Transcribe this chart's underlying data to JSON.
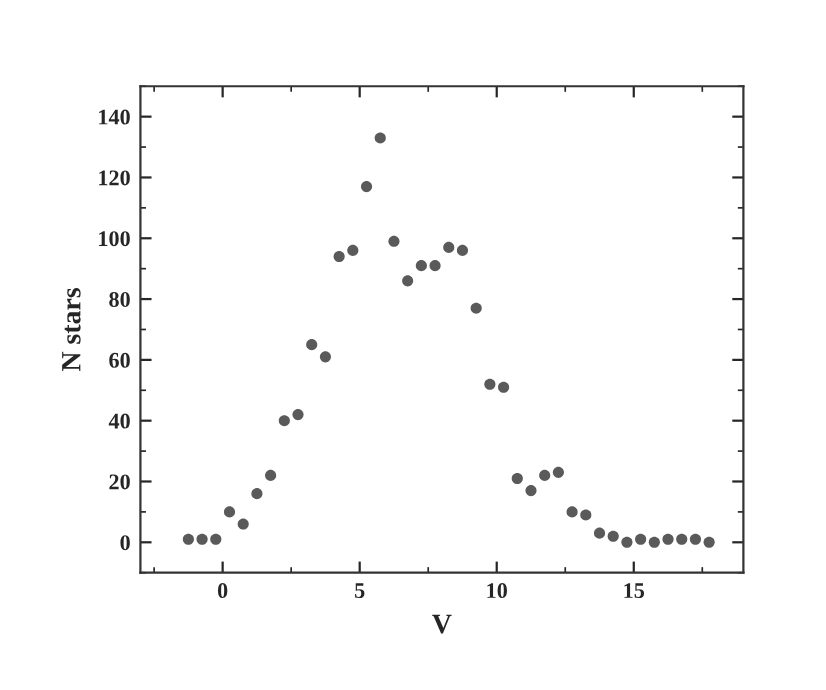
{
  "chart_data": {
    "type": "scatter",
    "xlabel": "V",
    "ylabel": "N stars",
    "x": [
      -1.25,
      -0.75,
      -0.25,
      0.25,
      0.75,
      1.25,
      1.75,
      2.25,
      2.75,
      3.25,
      3.75,
      4.25,
      4.75,
      5.25,
      5.75,
      6.25,
      6.75,
      7.25,
      7.75,
      8.25,
      8.75,
      9.25,
      9.75,
      10.25,
      10.75,
      11.25,
      11.75,
      12.25,
      12.75,
      13.25,
      13.75,
      14.25,
      14.75,
      15.25,
      15.75,
      16.25,
      16.75,
      17.25,
      17.75
    ],
    "series": [
      {
        "color": "#5a5a5a",
        "values": [
          1,
          1,
          1,
          10,
          6,
          16,
          22,
          40,
          42,
          65,
          61,
          94,
          96,
          117,
          133,
          99,
          86,
          91,
          91,
          97,
          96,
          77,
          52,
          51,
          21,
          17,
          22,
          23,
          10,
          9,
          3,
          2,
          0,
          1,
          0,
          1,
          1,
          1,
          0
        ]
      }
    ],
    "xlim": [
      -3,
      19
    ],
    "xticks": [
      0,
      5,
      10,
      15
    ],
    "ylim": [
      -10,
      150
    ],
    "yticks": [
      0,
      20,
      40,
      60,
      80,
      100,
      120,
      140
    ],
    "marker": "circle",
    "grid": false,
    "legend": false
  }
}
